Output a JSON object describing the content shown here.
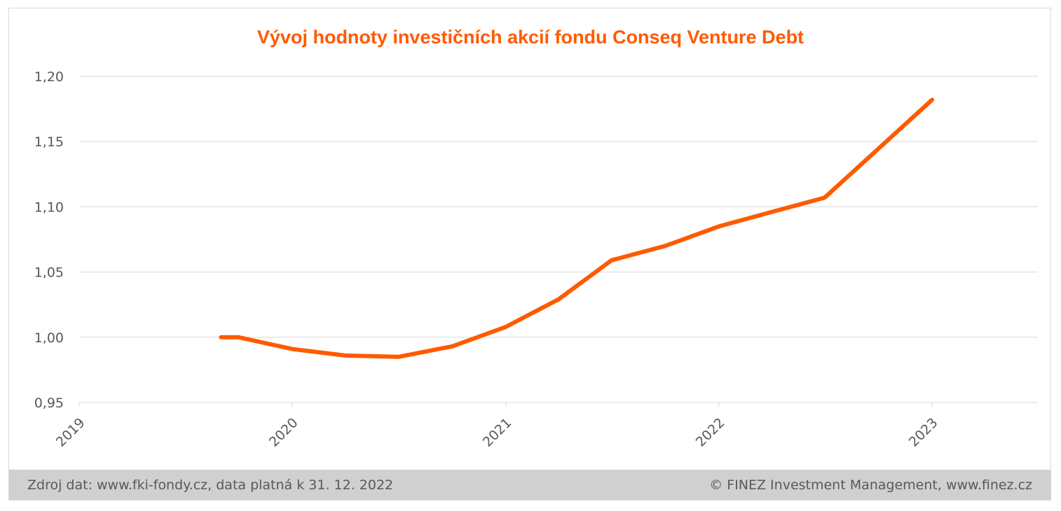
{
  "chart_data": {
    "type": "line",
    "title": "Vývoj hodnoty investičních akcií fondu Conseq Venture Debt",
    "xlabel": "",
    "ylabel": "",
    "ylim": [
      0.95,
      1.2
    ],
    "xlim": [
      "2019-01-01",
      "2023-06-30"
    ],
    "x_ticks": [
      "2019",
      "2020",
      "2021",
      "2022",
      "2023"
    ],
    "y_ticks": [
      "1,20",
      "1,15",
      "1,10",
      "1,05",
      "1,00",
      "0,95"
    ],
    "grid": "horizontal",
    "line_color": "#ff5a00",
    "series": [
      {
        "x": [
          "2019-09-01",
          "2019-10-01",
          "2020-01-01",
          "2020-04-01",
          "2020-07-01",
          "2020-10-01",
          "2021-01-01",
          "2021-04-01",
          "2021-07-01",
          "2021-10-01",
          "2022-01-01",
          "2022-04-01",
          "2022-07-01",
          "2023-01-01"
        ],
        "values": [
          1.0,
          1.0,
          0.991,
          0.986,
          0.985,
          0.993,
          1.008,
          1.029,
          1.059,
          1.07,
          1.085,
          1.096,
          1.107,
          1.182
        ]
      }
    ]
  },
  "footer": {
    "source": "Zdroj dat: www.fki-fondy.cz, data platná k 31. 12. 2022",
    "copyright": "© FINEZ Investment Management, www.finez.cz"
  }
}
